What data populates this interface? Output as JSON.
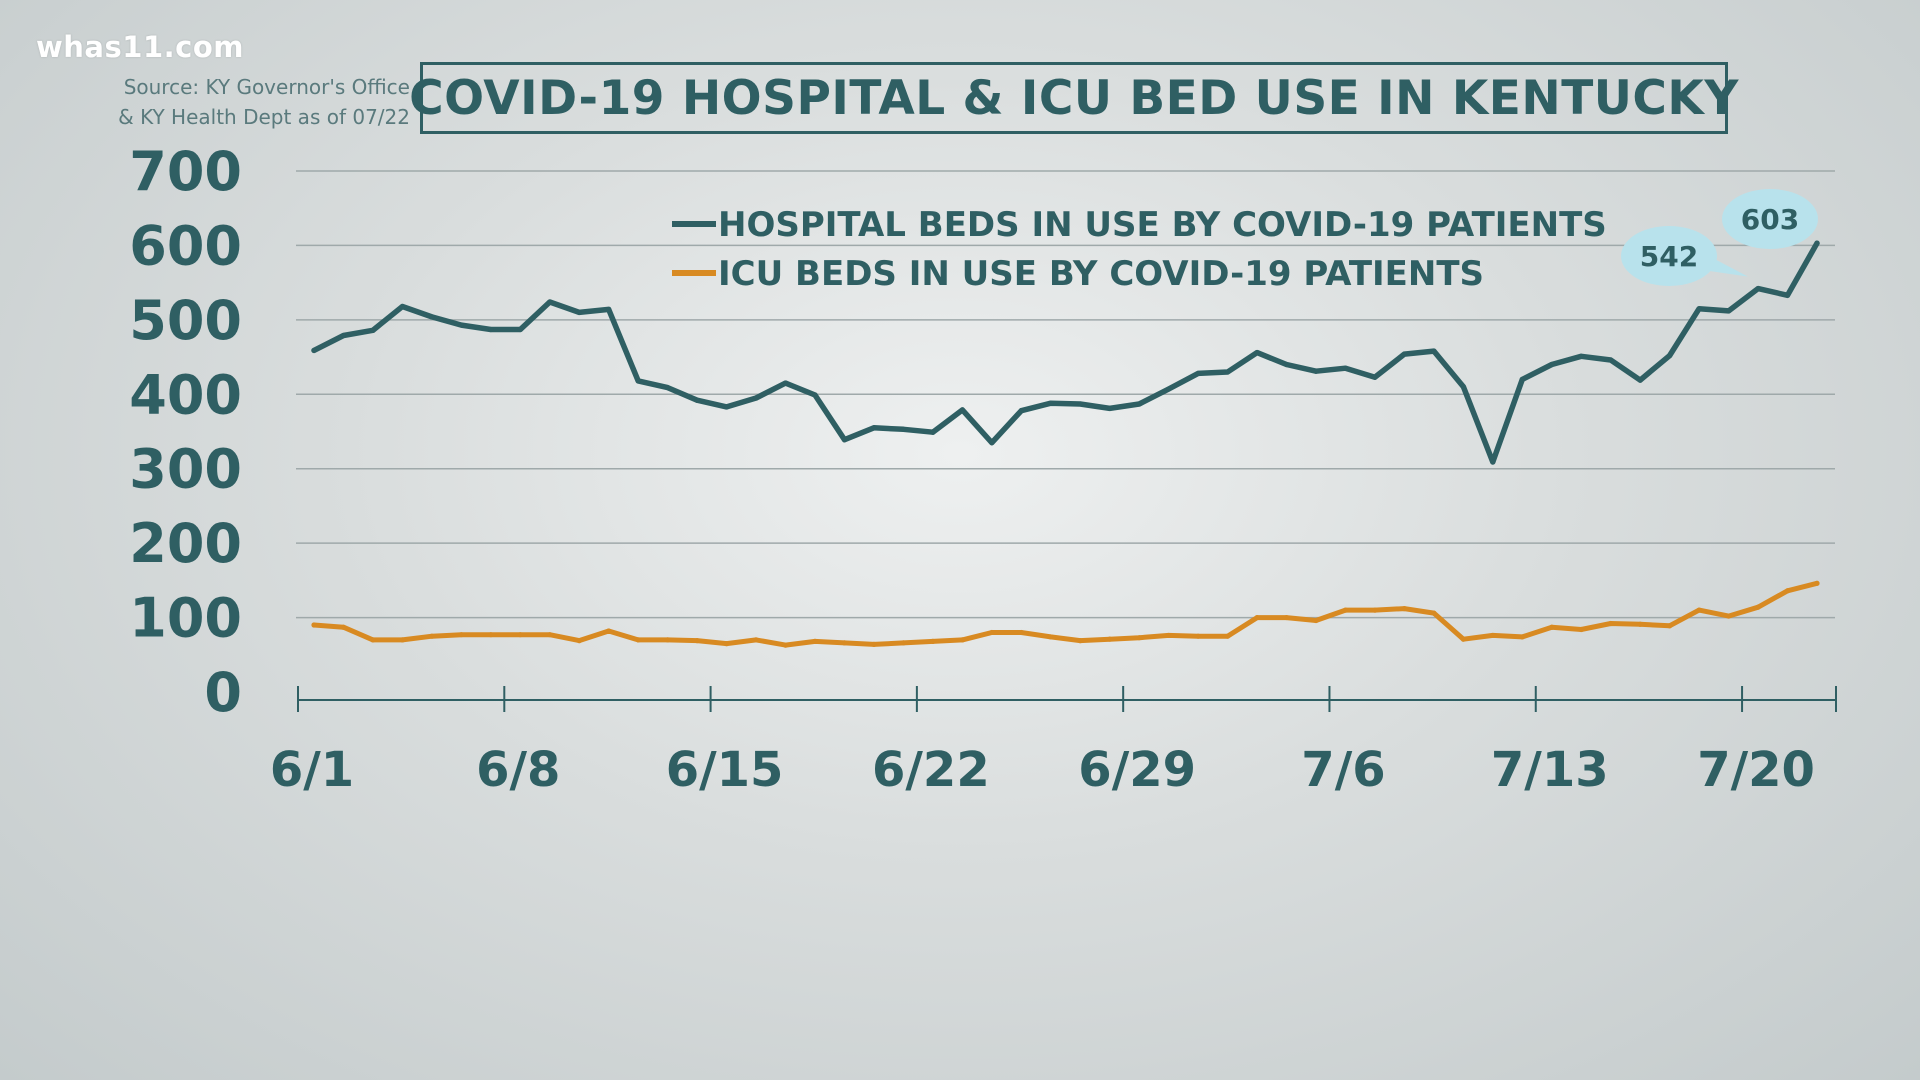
{
  "header": {
    "logo": "whas11.com",
    "source_line1": "Source: KY Governor's Office",
    "source_line2": "& KY Health Dept as of 07/22",
    "title": "COVID-19 HOSPITAL & ICU BED USE IN KENTUCKY"
  },
  "colors": {
    "hospital": "#2f5f63",
    "icu": "#d88a22",
    "text": "#2f5f63",
    "callout": "#b8e2ec"
  },
  "chart_data": {
    "type": "line",
    "title": "COVID-19 HOSPITAL & ICU BED USE IN KENTUCKY",
    "xlabel": "",
    "ylabel": "",
    "ylim": [
      0,
      700
    ],
    "yticks": [
      0,
      100,
      200,
      300,
      400,
      500,
      600,
      700
    ],
    "ytick_labels": [
      "0",
      "100",
      "200",
      "300",
      "400",
      "500",
      "600",
      "700"
    ],
    "xtick_labels": [
      "6/1",
      "6/8",
      "6/15",
      "6/22",
      "6/29",
      "7/6",
      "7/13",
      "7/20"
    ],
    "xtick_indices": [
      0,
      7,
      14,
      21,
      28,
      35,
      42,
      49
    ],
    "grid": true,
    "legend_position": "top-right",
    "x": [
      "6/1",
      "6/2",
      "6/3",
      "6/4",
      "6/5",
      "6/6",
      "6/7",
      "6/8",
      "6/9",
      "6/10",
      "6/11",
      "6/12",
      "6/13",
      "6/14",
      "6/15",
      "6/16",
      "6/17",
      "6/18",
      "6/19",
      "6/20",
      "6/21",
      "6/22",
      "6/23",
      "6/24",
      "6/25",
      "6/26",
      "6/27",
      "6/28",
      "6/29",
      "6/30",
      "7/1",
      "7/2",
      "7/3",
      "7/4",
      "7/5",
      "7/6",
      "7/7",
      "7/8",
      "7/9",
      "7/10",
      "7/11",
      "7/12",
      "7/13",
      "7/14",
      "7/15",
      "7/16",
      "7/17",
      "7/18",
      "7/19",
      "7/20",
      "7/21",
      "7/22"
    ],
    "series": [
      {
        "name": "HOSPITAL BEDS IN USE BY COVID-19 PATIENTS",
        "values": [
          459,
          479,
          486,
          518,
          504,
          493,
          487,
          487,
          524,
          510,
          514,
          418,
          409,
          392,
          383,
          395,
          415,
          399,
          339,
          355,
          353,
          349,
          379,
          335,
          378,
          388,
          387,
          381,
          387,
          407,
          428,
          430,
          456,
          440,
          431,
          435,
          423,
          454,
          458,
          410,
          309,
          420,
          440,
          451,
          446,
          419,
          452,
          515,
          512,
          542,
          533,
          603
        ]
      },
      {
        "name": "ICU BEDS IN USE BY COVID-19 PATIENTS",
        "values": [
          90,
          87,
          70,
          70,
          75,
          77,
          77,
          77,
          77,
          69,
          82,
          70,
          70,
          69,
          65,
          70,
          63,
          68,
          66,
          64,
          66,
          68,
          70,
          80,
          80,
          74,
          69,
          71,
          73,
          76,
          75,
          75,
          100,
          100,
          96,
          110,
          110,
          112,
          106,
          71,
          76,
          74,
          87,
          84,
          92,
          91,
          89,
          110,
          102,
          114,
          136,
          146
        ]
      }
    ],
    "annotations": [
      {
        "label": "542",
        "series": 0,
        "index": 49
      },
      {
        "label": "603",
        "series": 0,
        "index": 51
      }
    ]
  }
}
